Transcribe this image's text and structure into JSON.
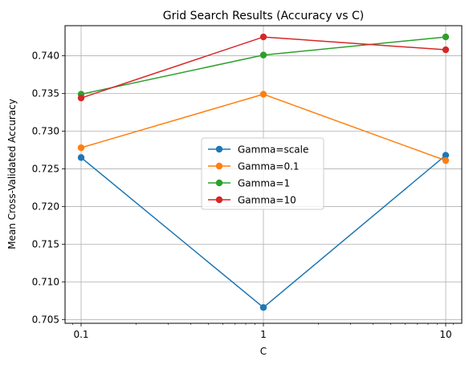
{
  "chart_data": {
    "type": "line",
    "title": "Grid Search Results (Accuracy vs C)",
    "xlabel": "C",
    "ylabel": "Mean Cross-Validated Accuracy",
    "xscale": "log",
    "x": [
      0.1,
      1,
      10
    ],
    "x_tick_labels": [
      "0.1",
      "1",
      "10"
    ],
    "ylim": [
      0.7045,
      0.744
    ],
    "y_ticks": [
      0.705,
      0.71,
      0.715,
      0.72,
      0.725,
      0.73,
      0.735,
      0.74
    ],
    "y_tick_labels": [
      "0.705",
      "0.710",
      "0.715",
      "0.720",
      "0.725",
      "0.730",
      "0.735",
      "0.740"
    ],
    "grid": true,
    "legend_position": "center-right",
    "series": [
      {
        "name": "Gamma=scale",
        "color": "#1f77b4",
        "values": [
          0.7265,
          0.7066,
          0.7268
        ]
      },
      {
        "name": "Gamma=0.1",
        "color": "#ff7f0e",
        "values": [
          0.7278,
          0.7349,
          0.7261
        ]
      },
      {
        "name": "Gamma=1",
        "color": "#2ca02c",
        "values": [
          0.7349,
          0.7401,
          0.7425
        ]
      },
      {
        "name": "Gamma=10",
        "color": "#d62728",
        "values": [
          0.7344,
          0.7425,
          0.7408
        ]
      }
    ]
  }
}
